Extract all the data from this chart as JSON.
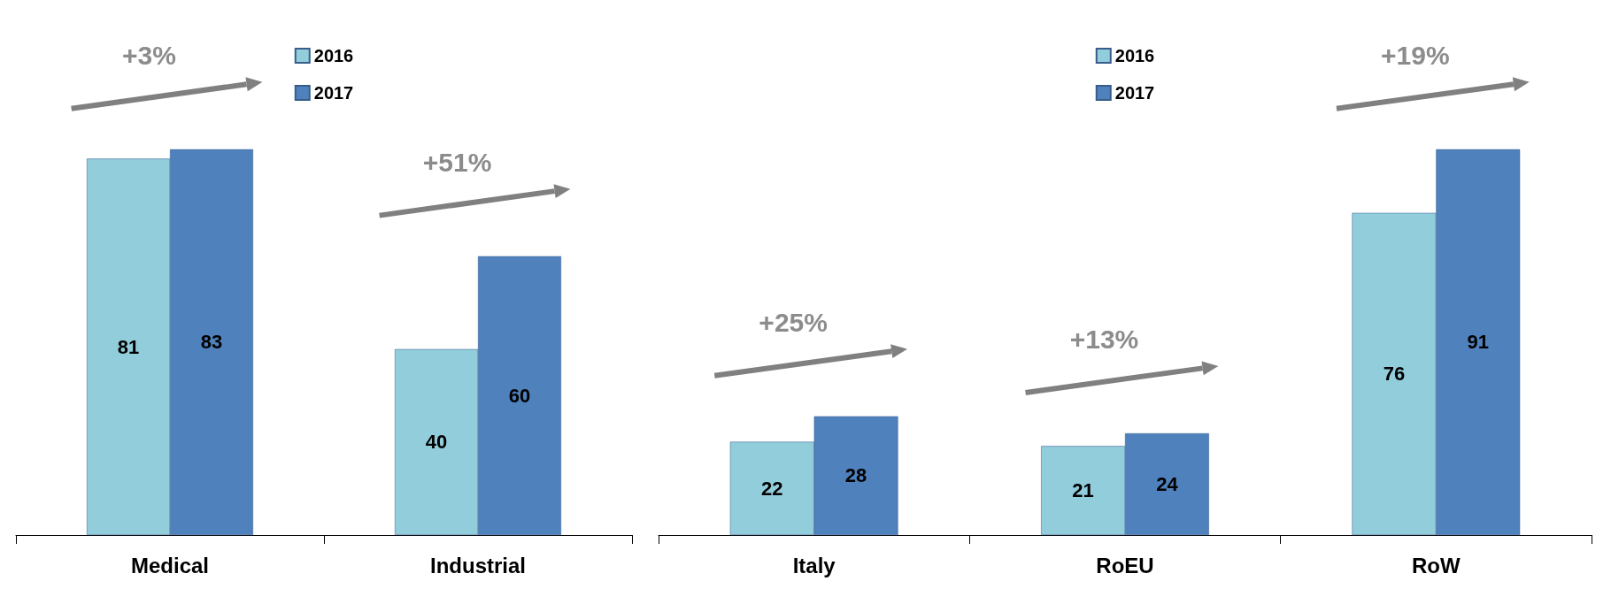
{
  "chart_data": [
    {
      "type": "bar",
      "categories": [
        "Medical",
        "Industrial"
      ],
      "series": [
        {
          "name": "2016",
          "color": "#92cddc",
          "values": [
            81,
            40
          ]
        },
        {
          "name": "2017",
          "color": "#4f81bd",
          "values": [
            83,
            60
          ]
        }
      ],
      "data_labels": true,
      "legend": "top",
      "annotations": [
        "+3%",
        "+51%"
      ]
    },
    {
      "type": "bar",
      "categories": [
        "Italy",
        "RoEU",
        "RoW"
      ],
      "series": [
        {
          "name": "2016",
          "color": "#92cddc",
          "values": [
            22,
            21,
            76
          ]
        },
        {
          "name": "2017",
          "color": "#4f81bd",
          "values": [
            28,
            24,
            91
          ]
        }
      ],
      "data_labels": true,
      "legend": "top",
      "annotations": [
        "+25%",
        "+13%",
        "+19%"
      ]
    }
  ]
}
